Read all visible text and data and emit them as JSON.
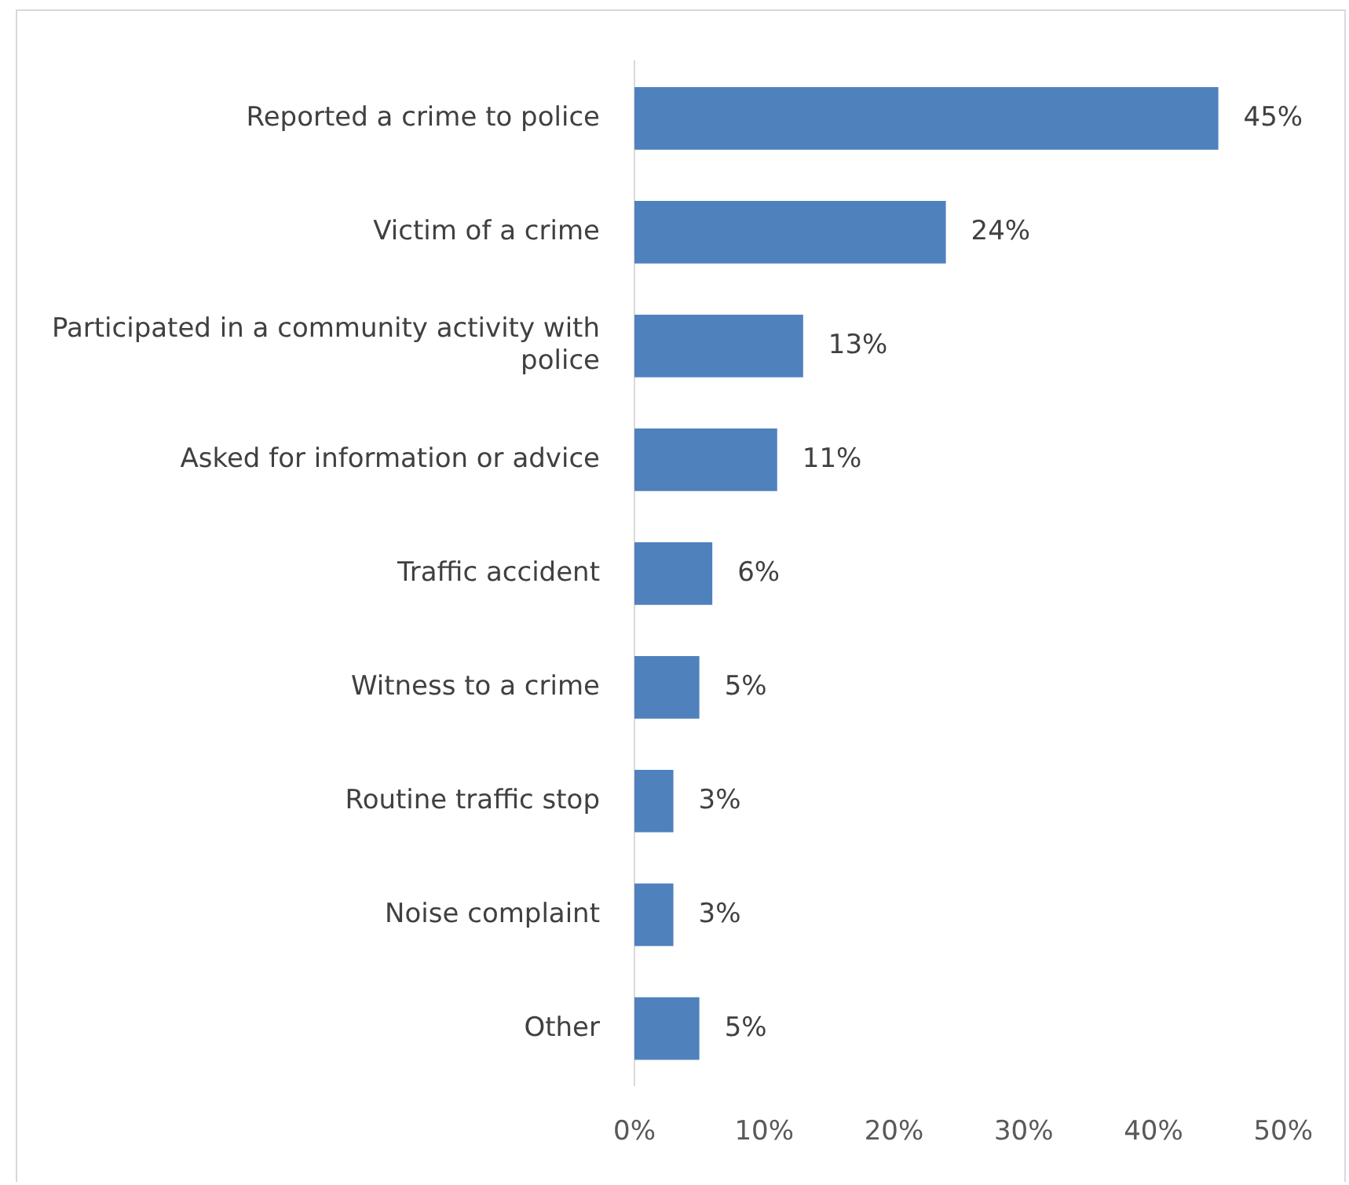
{
  "chart_data": {
    "type": "bar",
    "orientation": "horizontal",
    "categories": [
      "Reported a crime to police",
      "Victim of a crime",
      "Participated in a community activity with police",
      "Asked for information or advice",
      "Traffic accident",
      "Witness to a crime",
      "Routine traffic stop",
      "Noise complaint",
      "Other"
    ],
    "values": [
      45,
      24,
      13,
      11,
      6,
      5,
      3,
      3,
      5
    ],
    "value_labels": [
      "45%",
      "24%",
      "13%",
      "11%",
      "6%",
      "5%",
      "3%",
      "3%",
      "5%"
    ],
    "color": "#4f81bd",
    "xlim": [
      0,
      50
    ],
    "xticks": [
      {
        "value": 0,
        "label": "0%"
      },
      {
        "value": 10,
        "label": "10%"
      },
      {
        "value": 20,
        "label": "20%"
      },
      {
        "value": 30,
        "label": "30%"
      },
      {
        "value": 40,
        "label": "40%"
      },
      {
        "value": 50,
        "label": "50%"
      }
    ],
    "grid": false,
    "legend": false
  }
}
